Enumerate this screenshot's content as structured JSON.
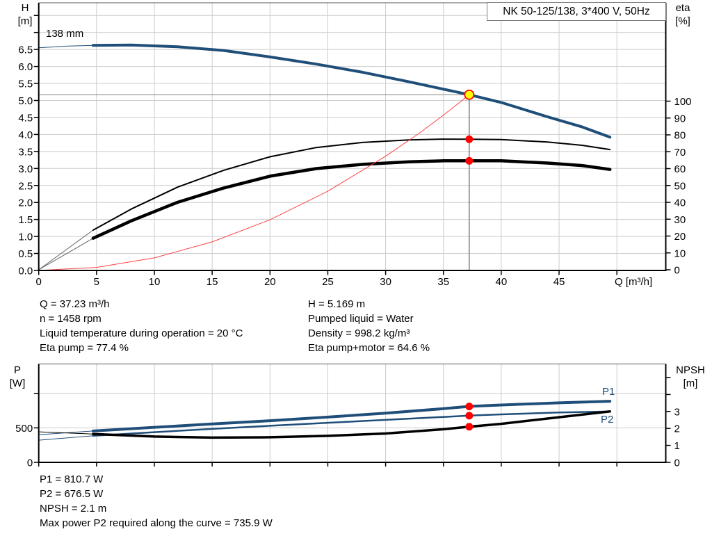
{
  "colors": {
    "curve_blue": "#1f4e79",
    "marker_red": "#ff0000",
    "system_red": "#ff4040",
    "duty_yellow": "#ffff00",
    "grid": "#cccccc",
    "duty_line": "#808080",
    "frame_light": "#555555",
    "axis_black": "#000000",
    "eta_lead_gray": "#666666"
  },
  "top_chart": {
    "title": "NK 50-125/138, 3*400 V, 50Hz",
    "left_axis_title_1": "H",
    "left_axis_title_2": "[m]",
    "right_axis_title_1": "eta",
    "right_axis_title_2": "[%]",
    "x_axis_title": "Q [m³/h]",
    "impeller_label": "138 mm"
  },
  "bottom_chart": {
    "left_axis_title_1": "P",
    "left_axis_title_2": "[W]",
    "right_axis_title_1": "NPSH",
    "right_axis_title_2": "[m]",
    "p1_label": "P1",
    "p2_label": "P2"
  },
  "info_block": {
    "left": [
      "Q = 37.23 m³/h",
      "n = 1458 rpm",
      "Liquid temperature during operation = 20 °C",
      "Eta pump = 77.4 %"
    ],
    "right": [
      "H = 5.169 m",
      "Pumped liquid = Water",
      "Density = 998.2 kg/m³",
      "Eta pump+motor = 64.6 %"
    ]
  },
  "results_block": {
    "lines": [
      "P1 = 810.7 W",
      "P2 = 676.5 W",
      "NPSH = 2.1 m",
      "Max power P2 required along the curve = 735.9 W"
    ]
  },
  "chart_data": [
    {
      "type": "line",
      "title": "NK 50-125/138, 3*400 V, 50Hz",
      "xlabel": "Q [m³/h]",
      "ylabel_left": "H [m]",
      "ylabel_right": "eta [%]",
      "x_ticks": {
        "step": 5,
        "label_max": 45,
        "grid_max": 50
      },
      "y_left_ticks": {
        "step": 0.5,
        "label_max": 6.5,
        "grid_max": 7.5
      },
      "y_right_ticks": {
        "step": 10,
        "max": 100
      },
      "x_range_plotted": [
        0,
        49.4
      ],
      "series": [
        {
          "name": "head-curve-lead",
          "axis": "H",
          "color_key": "curve_blue",
          "width": 1,
          "points": [
            [
              0,
              6.55
            ],
            [
              2.5,
              6.6
            ],
            [
              4.7,
              6.62
            ]
          ]
        },
        {
          "name": "head-curve-138mm",
          "axis": "H",
          "color_key": "curve_blue",
          "width": 4,
          "points": [
            [
              4.7,
              6.62
            ],
            [
              8,
              6.63
            ],
            [
              12,
              6.58
            ],
            [
              16,
              6.47
            ],
            [
              20,
              6.28
            ],
            [
              24,
              6.07
            ],
            [
              28,
              5.83
            ],
            [
              32,
              5.55
            ],
            [
              36,
              5.26
            ],
            [
              37.23,
              5.17
            ],
            [
              40,
              4.94
            ],
            [
              44,
              4.52
            ],
            [
              47,
              4.22
            ],
            [
              49.4,
              3.92
            ]
          ]
        },
        {
          "name": "eta-pump-lead",
          "axis": "ETA",
          "color_key": "eta_lead_gray",
          "width": 1,
          "points": [
            [
              0,
              0
            ],
            [
              4.7,
              23.5
            ]
          ]
        },
        {
          "name": "eta-pump-curve",
          "axis": "ETA",
          "color_key": "axis_black",
          "width": 2,
          "points": [
            [
              4.7,
              23.5
            ],
            [
              8,
              36
            ],
            [
              12,
              49
            ],
            [
              16,
              59
            ],
            [
              20,
              67
            ],
            [
              24,
              72.5
            ],
            [
              28,
              75.5
            ],
            [
              32,
              77
            ],
            [
              35,
              77.5
            ],
            [
              37.23,
              77.4
            ],
            [
              40,
              77.2
            ],
            [
              44,
              75.8
            ],
            [
              47,
              73.8
            ],
            [
              49.4,
              71.3
            ]
          ]
        },
        {
          "name": "eta-pump-motor-lead",
          "axis": "ETA",
          "color_key": "eta_lead_gray",
          "width": 1,
          "points": [
            [
              0,
              0
            ],
            [
              4.7,
              18.7
            ]
          ]
        },
        {
          "name": "eta-pump-motor-curve",
          "axis": "ETA",
          "color_key": "axis_black",
          "width": 4.5,
          "points": [
            [
              4.7,
              18.7
            ],
            [
              8,
              29
            ],
            [
              12,
              40
            ],
            [
              16,
              48.5
            ],
            [
              20,
              55.5
            ],
            [
              24,
              60
            ],
            [
              28,
              62.5
            ],
            [
              32,
              64
            ],
            [
              35,
              64.6
            ],
            [
              37.23,
              64.6
            ],
            [
              40,
              64.6
            ],
            [
              44,
              63.3
            ],
            [
              47,
              61.8
            ],
            [
              49.4,
              59.5
            ]
          ]
        },
        {
          "name": "system-curve",
          "axis": "H",
          "color_key": "system_red",
          "width": 1,
          "points": [
            [
              0,
              0
            ],
            [
              5,
              0.09
            ],
            [
              10,
              0.37
            ],
            [
              15,
              0.84
            ],
            [
              20,
              1.49
            ],
            [
              25,
              2.33
            ],
            [
              30,
              3.36
            ],
            [
              33,
              4.06
            ],
            [
              35,
              4.57
            ],
            [
              36.5,
              4.97
            ],
            [
              37.23,
              5.17
            ]
          ]
        }
      ],
      "duty_point": {
        "q": 37.23,
        "h": 5.169,
        "eta_pump": 77.4,
        "eta_pump_motor": 64.6
      }
    },
    {
      "type": "line",
      "ylabel_left": "P [W]",
      "ylabel_right": "NPSH [m]",
      "x_ticks": {
        "step": 5,
        "grid_max": 50
      },
      "p_ticks": {
        "values": [
          0,
          500,
          1000
        ],
        "labels": [
          "0",
          "500",
          ""
        ]
      },
      "npsh_ticks": {
        "values": [
          0,
          1,
          2,
          3,
          4,
          5
        ],
        "labels": [
          "0",
          "1",
          "2",
          "3",
          "",
          ""
        ]
      },
      "series": [
        {
          "name": "p1-curve-lead",
          "axis": "P",
          "color_key": "curve_blue",
          "width": 1,
          "points": [
            [
              0,
              400
            ],
            [
              4.7,
              455
            ]
          ]
        },
        {
          "name": "p1-curve",
          "axis": "P",
          "color_key": "curve_blue",
          "width": 4,
          "points": [
            [
              4.7,
              455
            ],
            [
              10,
              508
            ],
            [
              15,
              556
            ],
            [
              20,
              604
            ],
            [
              25,
              656
            ],
            [
              30,
              714
            ],
            [
              35,
              778
            ],
            [
              37.23,
              811
            ],
            [
              40,
              832
            ],
            [
              45,
              863
            ],
            [
              49.4,
              886
            ]
          ]
        },
        {
          "name": "p2-curve-lead",
          "axis": "P",
          "color_key": "curve_blue",
          "width": 1,
          "points": [
            [
              0,
              322
            ],
            [
              4.7,
              385
            ]
          ]
        },
        {
          "name": "p2-curve",
          "axis": "P",
          "color_key": "curve_blue",
          "width": 2.5,
          "points": [
            [
              4.7,
              385
            ],
            [
              10,
              438
            ],
            [
              15,
              485
            ],
            [
              20,
              530
            ],
            [
              25,
              574
            ],
            [
              30,
              616
            ],
            [
              35,
              658
            ],
            [
              37.23,
              677
            ],
            [
              40,
              696
            ],
            [
              45,
              723
            ],
            [
              49.4,
              737
            ]
          ]
        },
        {
          "name": "npsh-curve-lead",
          "axis": "N",
          "color_key": "axis_black",
          "width": 1,
          "points": [
            [
              0,
              1.8
            ],
            [
              4.7,
              1.67
            ]
          ]
        },
        {
          "name": "npsh-curve",
          "axis": "N",
          "color_key": "axis_black",
          "width": 3.5,
          "points": [
            [
              4.7,
              1.67
            ],
            [
              10,
              1.52
            ],
            [
              15,
              1.46
            ],
            [
              20,
              1.48
            ],
            [
              25,
              1.56
            ],
            [
              30,
              1.7
            ],
            [
              35,
              1.95
            ],
            [
              37.23,
              2.1
            ],
            [
              40,
              2.27
            ],
            [
              45,
              2.66
            ],
            [
              49.4,
              3.0
            ]
          ]
        }
      ],
      "duty_markers": {
        "q": 37.23,
        "p1": 810.7,
        "p2": 676.5,
        "npsh": 2.1
      }
    }
  ]
}
